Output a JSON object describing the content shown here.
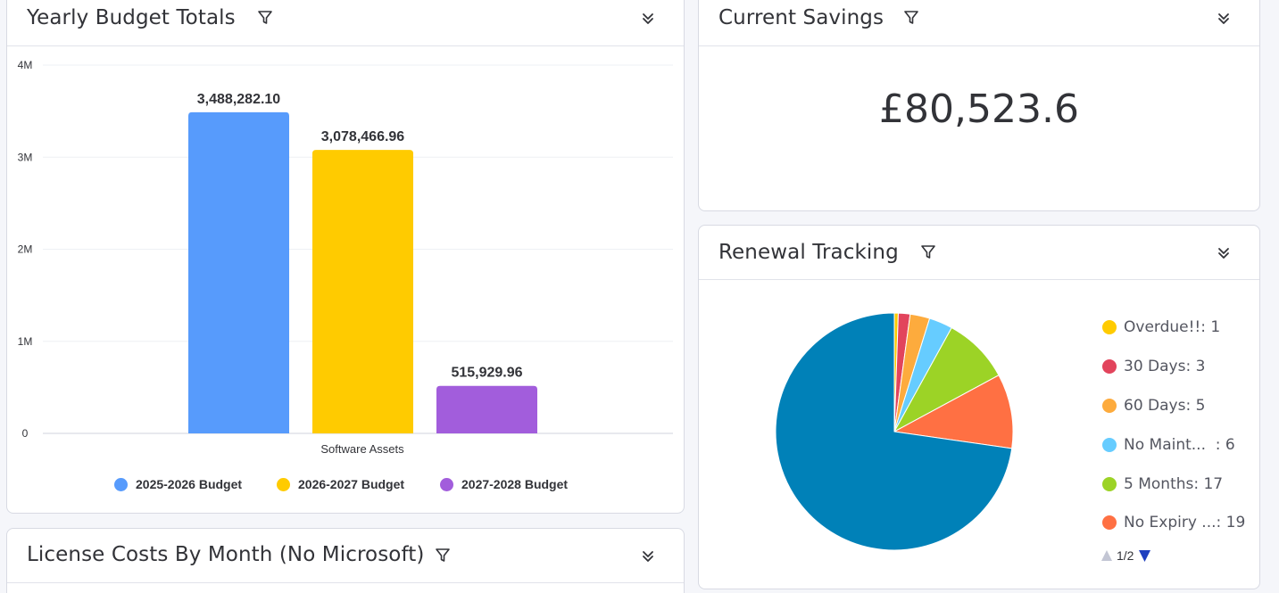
{
  "budget_card": {
    "title": "Yearly Budget Totals",
    "x_category": "Software Assets"
  },
  "savings_card": {
    "title": "Current Savings",
    "value": "£80,523.6"
  },
  "renewal_card": {
    "title": "Renewal Tracking",
    "legend": [
      {
        "label": "Overdue!!: 1",
        "color": "#ffcb00"
      },
      {
        "label": "30 Days: 3",
        "color": "#e2445c"
      },
      {
        "label": "60 Days: 5",
        "color": "#fdab3d"
      },
      {
        "label": "No Maint...  : 6",
        "color": "#66ccff"
      },
      {
        "label": "5 Months: 17",
        "color": "#9cd326"
      },
      {
        "label": "No Expiry ...: 19",
        "color": "#ff7043"
      }
    ],
    "pager": "1/2"
  },
  "license_card": {
    "title": "License Costs By Month (No Microsoft)"
  },
  "chart_data": [
    {
      "type": "bar",
      "title": "Yearly Budget Totals",
      "categories": [
        "Software Assets"
      ],
      "series": [
        {
          "name": "2025-2026 Budget",
          "values": [
            3488282.1
          ],
          "label": "3,488,282.10",
          "color": "#579bfc"
        },
        {
          "name": "2026-2027 Budget",
          "values": [
            3078466.96
          ],
          "label": "3,078,466.96",
          "color": "#ffcb00"
        },
        {
          "name": "2027-2028 Budget",
          "values": [
            515929.96
          ],
          "label": "515,929.96",
          "color": "#a25ddc"
        }
      ],
      "yticks": [
        "4M",
        "3M",
        "2M",
        "1M",
        "0"
      ],
      "ylim": [
        0,
        4000000
      ],
      "grid": true,
      "legend": "bottom"
    },
    {
      "type": "pie",
      "title": "Renewal Tracking",
      "slices": [
        {
          "name": "Overdue!!",
          "value": 1,
          "color": "#ffcb00"
        },
        {
          "name": "30 Days",
          "value": 3,
          "color": "#e2445c"
        },
        {
          "name": "60 Days",
          "value": 5,
          "color": "#fdab3d"
        },
        {
          "name": "No Maint...",
          "value": 6,
          "color": "#66ccff"
        },
        {
          "name": "5 Months",
          "value": 17,
          "color": "#9cd326"
        },
        {
          "name": "No Expiry ...",
          "value": 19,
          "color": "#ff7043"
        },
        {
          "name": "",
          "value": 136,
          "color": "#0081b8"
        }
      ],
      "legend": "right"
    }
  ]
}
